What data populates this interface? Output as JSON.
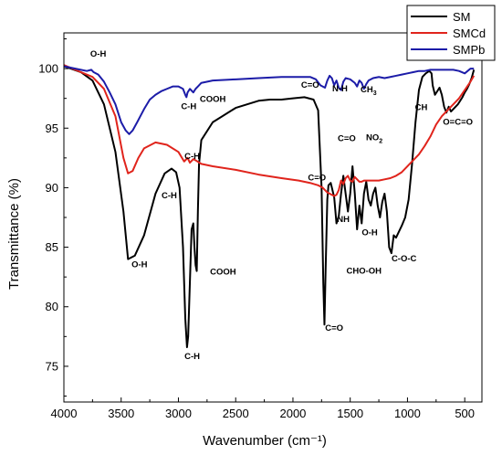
{
  "chart_data": {
    "type": "line",
    "xlabel": "Wavenumber (cm⁻¹)",
    "ylabel": "Transmittance  (%)",
    "xlim": [
      4000,
      350
    ],
    "ylim": [
      72,
      103
    ],
    "x_reversed": true,
    "grid": false,
    "legend_position": "top-right",
    "x_ticks": [
      4000,
      3500,
      3000,
      2500,
      2000,
      1500,
      1000,
      500
    ],
    "y_ticks": [
      75,
      80,
      85,
      90,
      95,
      100
    ],
    "series": [
      {
        "name": "SM",
        "color": "#000000",
        "x": [
          4000,
          3850,
          3750,
          3650,
          3550,
          3480,
          3440,
          3380,
          3300,
          3200,
          3120,
          3060,
          3020,
          2990,
          2960,
          2940,
          2925,
          2915,
          2900,
          2885,
          2870,
          2860,
          2850,
          2840,
          2830,
          2820,
          2800,
          2700,
          2500,
          2300,
          2200,
          2100,
          2000,
          1900,
          1820,
          1780,
          1750,
          1735,
          1725,
          1715,
          1700,
          1690,
          1670,
          1640,
          1620,
          1600,
          1580,
          1560,
          1540,
          1520,
          1500,
          1480,
          1460,
          1440,
          1420,
          1400,
          1380,
          1360,
          1340,
          1320,
          1300,
          1280,
          1260,
          1240,
          1220,
          1200,
          1180,
          1160,
          1140,
          1120,
          1100,
          1080,
          1050,
          1020,
          990,
          960,
          930,
          900,
          870,
          840,
          810,
          790,
          780,
          760,
          740,
          720,
          700,
          680,
          660,
          640,
          620,
          600,
          580,
          560,
          540,
          520,
          500,
          480,
          460,
          440,
          420
        ],
        "y": [
          100.2,
          99.7,
          99.0,
          97.0,
          93.0,
          88.0,
          84.0,
          84.3,
          86.0,
          89.5,
          91.2,
          91.6,
          91.3,
          90.0,
          85.0,
          79.0,
          76.6,
          77.5,
          82.0,
          86.5,
          87.0,
          85.0,
          83.5,
          83.0,
          88.0,
          92.0,
          94.0,
          95.5,
          96.7,
          97.3,
          97.4,
          97.4,
          97.5,
          97.6,
          97.4,
          96.5,
          90.0,
          82.0,
          78.5,
          83.0,
          89.0,
          90.2,
          90.4,
          89.2,
          87.0,
          87.6,
          89.5,
          91.0,
          89.5,
          88.0,
          89.5,
          91.8,
          89.5,
          86.5,
          88.5,
          87.0,
          89.5,
          90.5,
          89.0,
          88.5,
          89.5,
          90.0,
          88.5,
          87.5,
          88.8,
          89.5,
          88.0,
          85.0,
          84.5,
          86.0,
          85.8,
          86.2,
          86.8,
          87.5,
          89.0,
          92.0,
          95.5,
          98.2,
          99.3,
          99.6,
          99.8,
          99.6,
          98.6,
          97.8,
          98.1,
          98.4,
          97.8,
          96.8,
          96.3,
          96.8,
          96.4,
          96.6,
          96.8,
          97.0,
          97.3,
          97.6,
          98.0,
          98.3,
          98.7,
          99.2,
          99.9
        ]
      },
      {
        "name": "SMCd",
        "color": "#e0241c",
        "x": [
          4000,
          3850,
          3750,
          3650,
          3550,
          3480,
          3440,
          3400,
          3350,
          3300,
          3200,
          3100,
          3000,
          2950,
          2920,
          2900,
          2870,
          2850,
          2800,
          2700,
          2500,
          2300,
          2100,
          1950,
          1850,
          1780,
          1740,
          1720,
          1700,
          1680,
          1660,
          1640,
          1620,
          1600,
          1580,
          1560,
          1540,
          1520,
          1500,
          1480,
          1460,
          1440,
          1420,
          1400,
          1380,
          1350,
          1300,
          1250,
          1200,
          1150,
          1100,
          1050,
          1000,
          950,
          900,
          850,
          800,
          750,
          700,
          650,
          600,
          550,
          500,
          450,
          420
        ],
        "y": [
          100.3,
          99.7,
          99.3,
          98.3,
          96.0,
          92.5,
          91.2,
          91.4,
          92.5,
          93.3,
          93.8,
          93.6,
          93.0,
          92.2,
          92.5,
          92.1,
          92.4,
          92.3,
          92.0,
          91.8,
          91.5,
          91.1,
          90.8,
          90.6,
          90.4,
          90.2,
          90.0,
          89.8,
          89.6,
          89.5,
          89.4,
          89.3,
          89.4,
          89.8,
          90.6,
          90.3,
          90.8,
          91.0,
          90.6,
          90.5,
          90.9,
          90.7,
          90.5,
          90.5,
          90.6,
          90.6,
          90.6,
          90.6,
          90.7,
          90.8,
          91.0,
          91.3,
          91.8,
          92.3,
          92.8,
          93.5,
          94.3,
          95.3,
          96.0,
          96.5,
          97.0,
          97.5,
          98.2,
          98.9,
          99.4
        ]
      },
      {
        "name": "SMPb",
        "color": "#1c1ca8",
        "x": [
          4000,
          3900,
          3800,
          3760,
          3740,
          3700,
          3650,
          3600,
          3550,
          3500,
          3460,
          3430,
          3400,
          3360,
          3300,
          3250,
          3200,
          3150,
          3100,
          3050,
          3000,
          2960,
          2940,
          2930,
          2920,
          2900,
          2870,
          2850,
          2830,
          2800,
          2700,
          2500,
          2300,
          2100,
          1950,
          1850,
          1800,
          1760,
          1720,
          1700,
          1680,
          1660,
          1640,
          1620,
          1600,
          1580,
          1560,
          1540,
          1500,
          1460,
          1440,
          1420,
          1400,
          1380,
          1360,
          1340,
          1300,
          1250,
          1200,
          1150,
          1100,
          1050,
          1000,
          950,
          900,
          850,
          800,
          750,
          700,
          650,
          600,
          550,
          500,
          450,
          420
        ],
        "y": [
          100.2,
          100.0,
          99.8,
          99.9,
          99.7,
          99.5,
          98.9,
          98.0,
          97.0,
          95.5,
          94.8,
          94.5,
          94.8,
          95.5,
          96.6,
          97.4,
          97.8,
          98.1,
          98.3,
          98.5,
          98.5,
          98.3,
          97.8,
          97.6,
          98.0,
          98.3,
          98.0,
          98.3,
          98.5,
          98.8,
          99.0,
          99.1,
          99.2,
          99.3,
          99.3,
          99.3,
          99.1,
          98.6,
          98.4,
          99.0,
          99.4,
          99.2,
          98.6,
          99.0,
          98.4,
          98.2,
          98.9,
          99.2,
          99.1,
          98.8,
          98.5,
          99.0,
          98.8,
          98.3,
          98.7,
          99.0,
          99.2,
          99.3,
          99.2,
          99.3,
          99.4,
          99.5,
          99.6,
          99.7,
          99.8,
          99.8,
          99.9,
          99.9,
          99.9,
          99.9,
          99.9,
          99.8,
          99.6,
          100.0,
          100.0
        ]
      }
    ],
    "annotations": [
      {
        "label_parts": [
          "O-H"
        ],
        "x": 3700,
        "y": 101.0
      },
      {
        "label_parts": [
          "C-H"
        ],
        "x": 2910,
        "y": 96.6
      },
      {
        "label_parts": [
          "COOH"
        ],
        "x": 2700,
        "y": 97.2
      },
      {
        "label_parts": [
          "C=O"
        ],
        "x": 1850,
        "y": 98.4
      },
      {
        "label_parts": [
          "N-H"
        ],
        "x": 1590,
        "y": 98.1
      },
      {
        "label_parts": [
          "CH",
          "3"
        ],
        "x": 1340,
        "y": 98.0
      },
      {
        "label_parts": [
          "CH"
        ],
        "x": 880,
        "y": 96.5
      },
      {
        "label_parts": [
          "O=C=O"
        ],
        "x": 560,
        "y": 95.3
      },
      {
        "label_parts": [
          "C-H"
        ],
        "x": 2880,
        "y": 92.4
      },
      {
        "label_parts": [
          "C-H"
        ],
        "x": 3080,
        "y": 89.1
      },
      {
        "label_parts": [
          "O-H"
        ],
        "x": 3340,
        "y": 83.3
      },
      {
        "label_parts": [
          "COOH"
        ],
        "x": 2610,
        "y": 82.7
      },
      {
        "label_parts": [
          "C-H"
        ],
        "x": 2880,
        "y": 75.6
      },
      {
        "label_parts": [
          "C=O"
        ],
        "x": 1640,
        "y": 78.0
      },
      {
        "label_parts": [
          "C=O"
        ],
        "x": 1790,
        "y": 90.6
      },
      {
        "label_parts": [
          "C=O"
        ],
        "x": 1530,
        "y": 93.9
      },
      {
        "label_parts": [
          "NO",
          "2"
        ],
        "x": 1290,
        "y": 94.0
      },
      {
        "label_parts": [
          "NH"
        ],
        "x": 1560,
        "y": 87.1
      },
      {
        "label_parts": [
          "O-H"
        ],
        "x": 1330,
        "y": 86.0
      },
      {
        "label_parts": [
          "CHO-OH"
        ],
        "x": 1380,
        "y": 82.8
      },
      {
        "label_parts": [
          "C-O-C"
        ],
        "x": 1030,
        "y": 83.8
      }
    ]
  }
}
